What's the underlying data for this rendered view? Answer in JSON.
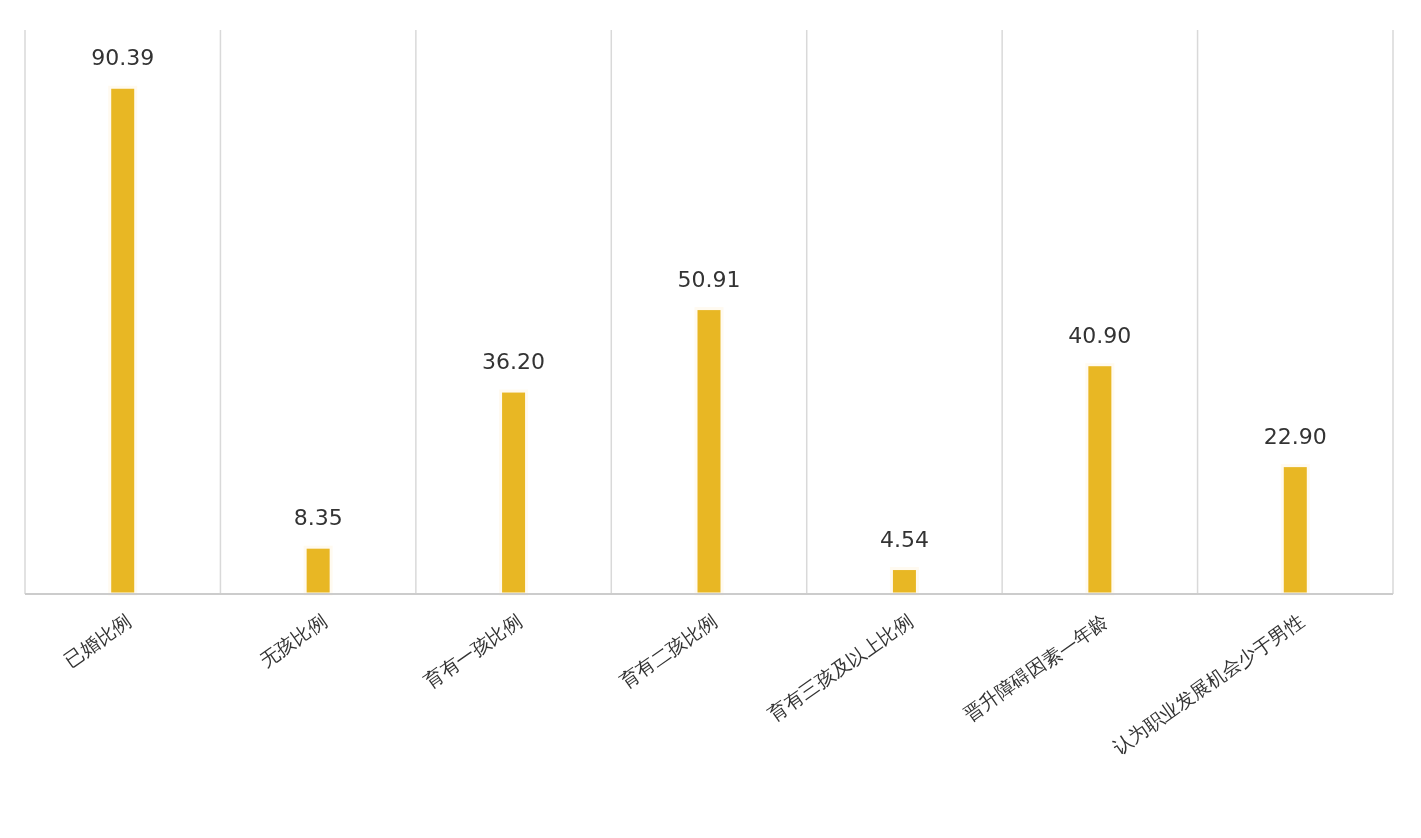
{
  "chart_data": {
    "type": "bar",
    "categories": [
      "已婚比例",
      "无孩比例",
      "育有一孩比例",
      "育有二孩比例",
      "育有三孩及以上比例",
      "晋升障碍因素—年龄",
      "认为职业发展机会少于男性"
    ],
    "values": [
      90.39,
      8.35,
      36.2,
      50.91,
      4.54,
      40.9,
      22.9
    ],
    "value_labels": [
      "90.39",
      "8.35",
      "36.20",
      "50.91",
      "4.54",
      "40.90",
      "22.90"
    ],
    "color": "#e8b724",
    "grid": "x"
  }
}
